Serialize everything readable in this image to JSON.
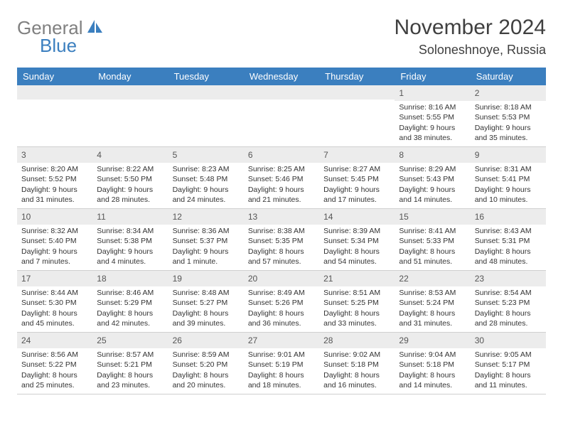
{
  "brand": {
    "word1": "General",
    "word2": "Blue",
    "text_color": "#808080",
    "accent_color": "#3b7fbf"
  },
  "header": {
    "title": "November 2024",
    "location": "Soloneshnoye, Russia"
  },
  "calendar": {
    "header_bg": "#3b7fbf",
    "header_text_color": "#ffffff",
    "daynum_bg": "#ececec",
    "columns": [
      "Sunday",
      "Monday",
      "Tuesday",
      "Wednesday",
      "Thursday",
      "Friday",
      "Saturday"
    ],
    "weeks": [
      [
        {
          "day": "",
          "sunrise": "",
          "sunset": "",
          "daylight": ""
        },
        {
          "day": "",
          "sunrise": "",
          "sunset": "",
          "daylight": ""
        },
        {
          "day": "",
          "sunrise": "",
          "sunset": "",
          "daylight": ""
        },
        {
          "day": "",
          "sunrise": "",
          "sunset": "",
          "daylight": ""
        },
        {
          "day": "",
          "sunrise": "",
          "sunset": "",
          "daylight": ""
        },
        {
          "day": "1",
          "sunrise": "Sunrise: 8:16 AM",
          "sunset": "Sunset: 5:55 PM",
          "daylight": "Daylight: 9 hours and 38 minutes."
        },
        {
          "day": "2",
          "sunrise": "Sunrise: 8:18 AM",
          "sunset": "Sunset: 5:53 PM",
          "daylight": "Daylight: 9 hours and 35 minutes."
        }
      ],
      [
        {
          "day": "3",
          "sunrise": "Sunrise: 8:20 AM",
          "sunset": "Sunset: 5:52 PM",
          "daylight": "Daylight: 9 hours and 31 minutes."
        },
        {
          "day": "4",
          "sunrise": "Sunrise: 8:22 AM",
          "sunset": "Sunset: 5:50 PM",
          "daylight": "Daylight: 9 hours and 28 minutes."
        },
        {
          "day": "5",
          "sunrise": "Sunrise: 8:23 AM",
          "sunset": "Sunset: 5:48 PM",
          "daylight": "Daylight: 9 hours and 24 minutes."
        },
        {
          "day": "6",
          "sunrise": "Sunrise: 8:25 AM",
          "sunset": "Sunset: 5:46 PM",
          "daylight": "Daylight: 9 hours and 21 minutes."
        },
        {
          "day": "7",
          "sunrise": "Sunrise: 8:27 AM",
          "sunset": "Sunset: 5:45 PM",
          "daylight": "Daylight: 9 hours and 17 minutes."
        },
        {
          "day": "8",
          "sunrise": "Sunrise: 8:29 AM",
          "sunset": "Sunset: 5:43 PM",
          "daylight": "Daylight: 9 hours and 14 minutes."
        },
        {
          "day": "9",
          "sunrise": "Sunrise: 8:31 AM",
          "sunset": "Sunset: 5:41 PM",
          "daylight": "Daylight: 9 hours and 10 minutes."
        }
      ],
      [
        {
          "day": "10",
          "sunrise": "Sunrise: 8:32 AM",
          "sunset": "Sunset: 5:40 PM",
          "daylight": "Daylight: 9 hours and 7 minutes."
        },
        {
          "day": "11",
          "sunrise": "Sunrise: 8:34 AM",
          "sunset": "Sunset: 5:38 PM",
          "daylight": "Daylight: 9 hours and 4 minutes."
        },
        {
          "day": "12",
          "sunrise": "Sunrise: 8:36 AM",
          "sunset": "Sunset: 5:37 PM",
          "daylight": "Daylight: 9 hours and 1 minute."
        },
        {
          "day": "13",
          "sunrise": "Sunrise: 8:38 AM",
          "sunset": "Sunset: 5:35 PM",
          "daylight": "Daylight: 8 hours and 57 minutes."
        },
        {
          "day": "14",
          "sunrise": "Sunrise: 8:39 AM",
          "sunset": "Sunset: 5:34 PM",
          "daylight": "Daylight: 8 hours and 54 minutes."
        },
        {
          "day": "15",
          "sunrise": "Sunrise: 8:41 AM",
          "sunset": "Sunset: 5:33 PM",
          "daylight": "Daylight: 8 hours and 51 minutes."
        },
        {
          "day": "16",
          "sunrise": "Sunrise: 8:43 AM",
          "sunset": "Sunset: 5:31 PM",
          "daylight": "Daylight: 8 hours and 48 minutes."
        }
      ],
      [
        {
          "day": "17",
          "sunrise": "Sunrise: 8:44 AM",
          "sunset": "Sunset: 5:30 PM",
          "daylight": "Daylight: 8 hours and 45 minutes."
        },
        {
          "day": "18",
          "sunrise": "Sunrise: 8:46 AM",
          "sunset": "Sunset: 5:29 PM",
          "daylight": "Daylight: 8 hours and 42 minutes."
        },
        {
          "day": "19",
          "sunrise": "Sunrise: 8:48 AM",
          "sunset": "Sunset: 5:27 PM",
          "daylight": "Daylight: 8 hours and 39 minutes."
        },
        {
          "day": "20",
          "sunrise": "Sunrise: 8:49 AM",
          "sunset": "Sunset: 5:26 PM",
          "daylight": "Daylight: 8 hours and 36 minutes."
        },
        {
          "day": "21",
          "sunrise": "Sunrise: 8:51 AM",
          "sunset": "Sunset: 5:25 PM",
          "daylight": "Daylight: 8 hours and 33 minutes."
        },
        {
          "day": "22",
          "sunrise": "Sunrise: 8:53 AM",
          "sunset": "Sunset: 5:24 PM",
          "daylight": "Daylight: 8 hours and 31 minutes."
        },
        {
          "day": "23",
          "sunrise": "Sunrise: 8:54 AM",
          "sunset": "Sunset: 5:23 PM",
          "daylight": "Daylight: 8 hours and 28 minutes."
        }
      ],
      [
        {
          "day": "24",
          "sunrise": "Sunrise: 8:56 AM",
          "sunset": "Sunset: 5:22 PM",
          "daylight": "Daylight: 8 hours and 25 minutes."
        },
        {
          "day": "25",
          "sunrise": "Sunrise: 8:57 AM",
          "sunset": "Sunset: 5:21 PM",
          "daylight": "Daylight: 8 hours and 23 minutes."
        },
        {
          "day": "26",
          "sunrise": "Sunrise: 8:59 AM",
          "sunset": "Sunset: 5:20 PM",
          "daylight": "Daylight: 8 hours and 20 minutes."
        },
        {
          "day": "27",
          "sunrise": "Sunrise: 9:01 AM",
          "sunset": "Sunset: 5:19 PM",
          "daylight": "Daylight: 8 hours and 18 minutes."
        },
        {
          "day": "28",
          "sunrise": "Sunrise: 9:02 AM",
          "sunset": "Sunset: 5:18 PM",
          "daylight": "Daylight: 8 hours and 16 minutes."
        },
        {
          "day": "29",
          "sunrise": "Sunrise: 9:04 AM",
          "sunset": "Sunset: 5:18 PM",
          "daylight": "Daylight: 8 hours and 14 minutes."
        },
        {
          "day": "30",
          "sunrise": "Sunrise: 9:05 AM",
          "sunset": "Sunset: 5:17 PM",
          "daylight": "Daylight: 8 hours and 11 minutes."
        }
      ]
    ]
  }
}
